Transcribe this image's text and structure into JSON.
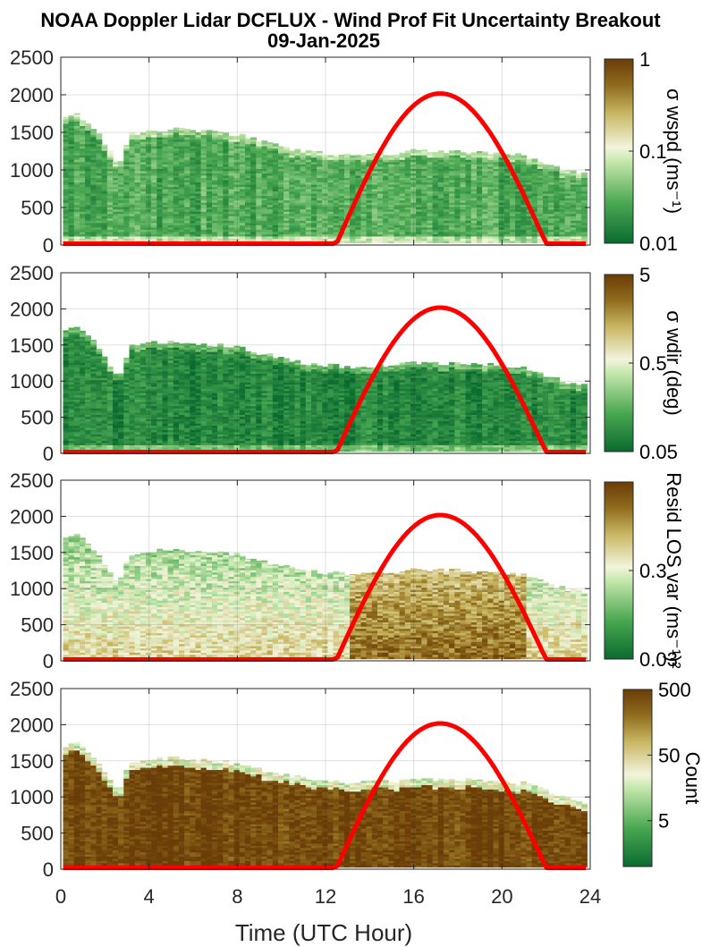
{
  "title": {
    "line1": "NOAA Doppler Lidar DCFLUX - Wind Prof Fit Uncertainty Breakout",
    "line2": "09-Jan-2025"
  },
  "chart_data": {
    "type": "heatmap",
    "xlabel": "Time (UTC Hour)",
    "xlim": [
      0,
      24
    ],
    "xticks": [
      0,
      4,
      8,
      12,
      16,
      20,
      24
    ],
    "ylim": [
      0,
      2500
    ],
    "yticks": [
      0,
      500,
      1000,
      1500,
      2000,
      2500
    ],
    "grid": true,
    "overlay": {
      "name": "",
      "color": "#ff0000",
      "shape": "solar elevation arc",
      "start_hour": 12.5,
      "peak_hour": 17.2,
      "peak_value": 2000,
      "end_hour": 22.0
    },
    "data_top_profile": [
      [
        0.2,
        1700
      ],
      [
        0.5,
        1760
      ],
      [
        1.0,
        1640
      ],
      [
        1.5,
        1510
      ],
      [
        2.0,
        1270
      ],
      [
        2.5,
        1050
      ],
      [
        3.0,
        1480
      ],
      [
        4.0,
        1530
      ],
      [
        5.0,
        1540
      ],
      [
        6.0,
        1520
      ],
      [
        7.0,
        1500
      ],
      [
        8.0,
        1460
      ],
      [
        9.0,
        1380
      ],
      [
        10.0,
        1300
      ],
      [
        11.0,
        1250
      ],
      [
        12.0,
        1220
      ],
      [
        13.0,
        1200
      ],
      [
        14.0,
        1220
      ],
      [
        15.0,
        1210
      ],
      [
        16.0,
        1260
      ],
      [
        17.0,
        1250
      ],
      [
        18.0,
        1250
      ],
      [
        19.0,
        1220
      ],
      [
        20.0,
        1220
      ],
      [
        21.0,
        1180
      ],
      [
        22.0,
        1060
      ],
      [
        23.0,
        980
      ],
      [
        23.7,
        930
      ]
    ],
    "panels": [
      {
        "colorbar_label": "σ wspd (ms⁻¹)",
        "colorbar_scale": "log",
        "colorbar_ticks": [
          "1",
          "0.1",
          "0.01"
        ],
        "colorbar_range": [
          0.01,
          1
        ],
        "overall_level": 0.22
      },
      {
        "colorbar_label": "σ wdir (deg)",
        "colorbar_scale": "log",
        "colorbar_ticks": [
          "5",
          "0.5",
          "0.05"
        ],
        "colorbar_range": [
          0.05,
          5
        ],
        "overall_level": 0.1
      },
      {
        "colorbar_label": "Resid LOS var (ms⁻¹)²",
        "colorbar_scale": "log",
        "colorbar_ticks": [
          "0.3",
          "0.03"
        ],
        "colorbar_range": [
          0.03,
          3
        ],
        "overall_level": 0.6
      },
      {
        "colorbar_label": "Count",
        "colorbar_scale": "log",
        "colorbar_ticks": [
          "500",
          "50",
          "5"
        ],
        "colorbar_range": [
          1,
          500
        ],
        "overall_level": 0.97
      }
    ]
  }
}
